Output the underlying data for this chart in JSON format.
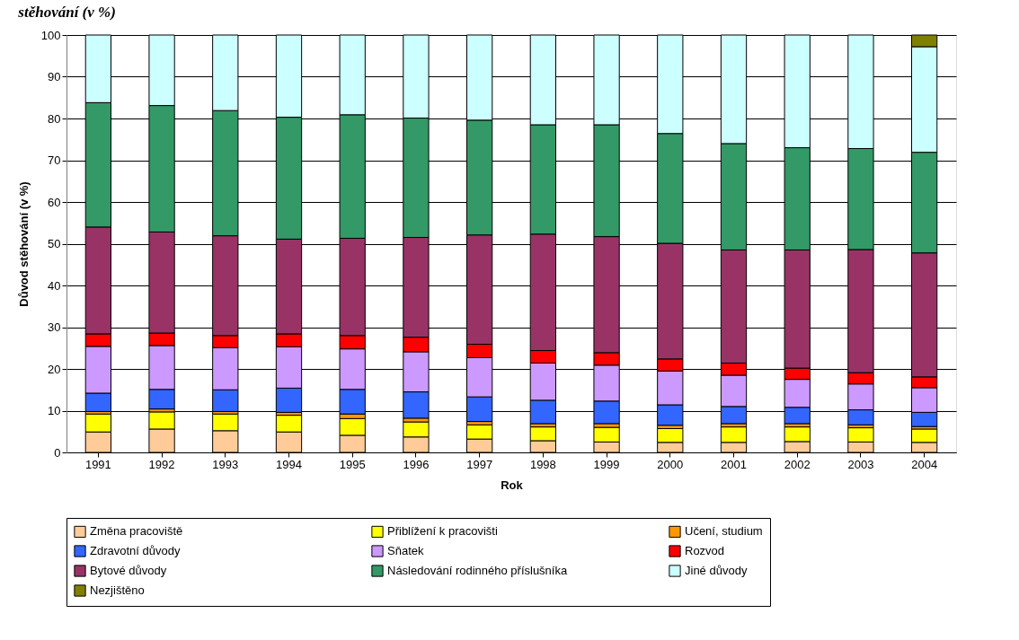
{
  "chart_data": {
    "type": "bar",
    "stacked": true,
    "title": "stěhování (v %)",
    "xlabel": "Rok",
    "ylabel": "Důvod stěhování (v %)",
    "categories": [
      "1991",
      "1992",
      "1993",
      "1994",
      "1995",
      "1996",
      "1997",
      "1998",
      "1999",
      "2000",
      "2001",
      "2002",
      "2003",
      "2004"
    ],
    "ylim": [
      0,
      100
    ],
    "yticks": [
      0,
      10,
      20,
      30,
      40,
      50,
      60,
      70,
      80,
      90,
      100
    ],
    "grid": "y",
    "legend": "bottom",
    "series": [
      {
        "name": "Změna pracoviště",
        "color": "#ffcc99",
        "values": [
          4.9,
          5.6,
          5.2,
          4.9,
          4.1,
          3.7,
          3.2,
          2.8,
          2.5,
          2.4,
          2.4,
          2.6,
          2.5,
          2.4
        ]
      },
      {
        "name": "Přiblížení k pracovišti",
        "color": "#ffff00",
        "values": [
          4.3,
          4.1,
          4.0,
          4.0,
          4.0,
          3.6,
          3.4,
          3.3,
          3.5,
          3.3,
          3.7,
          3.5,
          3.4,
          3.2
        ]
      },
      {
        "name": "Učení, studium",
        "color": "#ff9900",
        "values": [
          0.6,
          0.7,
          0.6,
          0.7,
          1.1,
          0.9,
          0.8,
          0.8,
          0.9,
          0.8,
          0.8,
          0.8,
          0.7,
          0.6
        ]
      },
      {
        "name": "Zdravotní důvody",
        "color": "#3366ff",
        "values": [
          4.4,
          4.7,
          5.2,
          5.8,
          5.9,
          6.3,
          5.9,
          5.6,
          5.4,
          4.9,
          4.1,
          3.9,
          3.6,
          3.4
        ]
      },
      {
        "name": "Sňatek",
        "color": "#cc99ff",
        "values": [
          11.2,
          10.5,
          10.1,
          9.9,
          9.7,
          9.6,
          9.4,
          8.9,
          8.6,
          8.1,
          7.5,
          6.7,
          6.2,
          5.9
        ]
      },
      {
        "name": "Rozvod",
        "color": "#ff0000",
        "values": [
          3.0,
          3.0,
          2.9,
          3.1,
          3.2,
          3.5,
          3.2,
          3.0,
          3.0,
          2.9,
          2.9,
          2.7,
          2.7,
          2.6
        ]
      },
      {
        "name": "Bytové důvody",
        "color": "#993366",
        "values": [
          25.6,
          24.2,
          23.9,
          22.7,
          23.3,
          23.9,
          26.2,
          27.9,
          27.8,
          27.7,
          27.1,
          28.3,
          29.5,
          29.7
        ]
      },
      {
        "name": "Následování rodinného příslušníka",
        "color": "#339966",
        "values": [
          29.8,
          30.3,
          30.0,
          29.2,
          29.6,
          28.6,
          27.5,
          26.2,
          26.8,
          26.3,
          25.5,
          24.5,
          24.2,
          24.1
        ]
      },
      {
        "name": "Jiné důvody",
        "color": "#ccffff",
        "values": [
          16.2,
          16.9,
          18.1,
          19.7,
          19.1,
          19.9,
          20.4,
          21.5,
          21.5,
          23.6,
          26.0,
          27.0,
          27.2,
          25.3
        ]
      },
      {
        "name": "Nezjištěno",
        "color": "#808000",
        "values": [
          null,
          null,
          null,
          null,
          null,
          null,
          null,
          null,
          null,
          null,
          null,
          null,
          null,
          2.8
        ]
      }
    ]
  }
}
